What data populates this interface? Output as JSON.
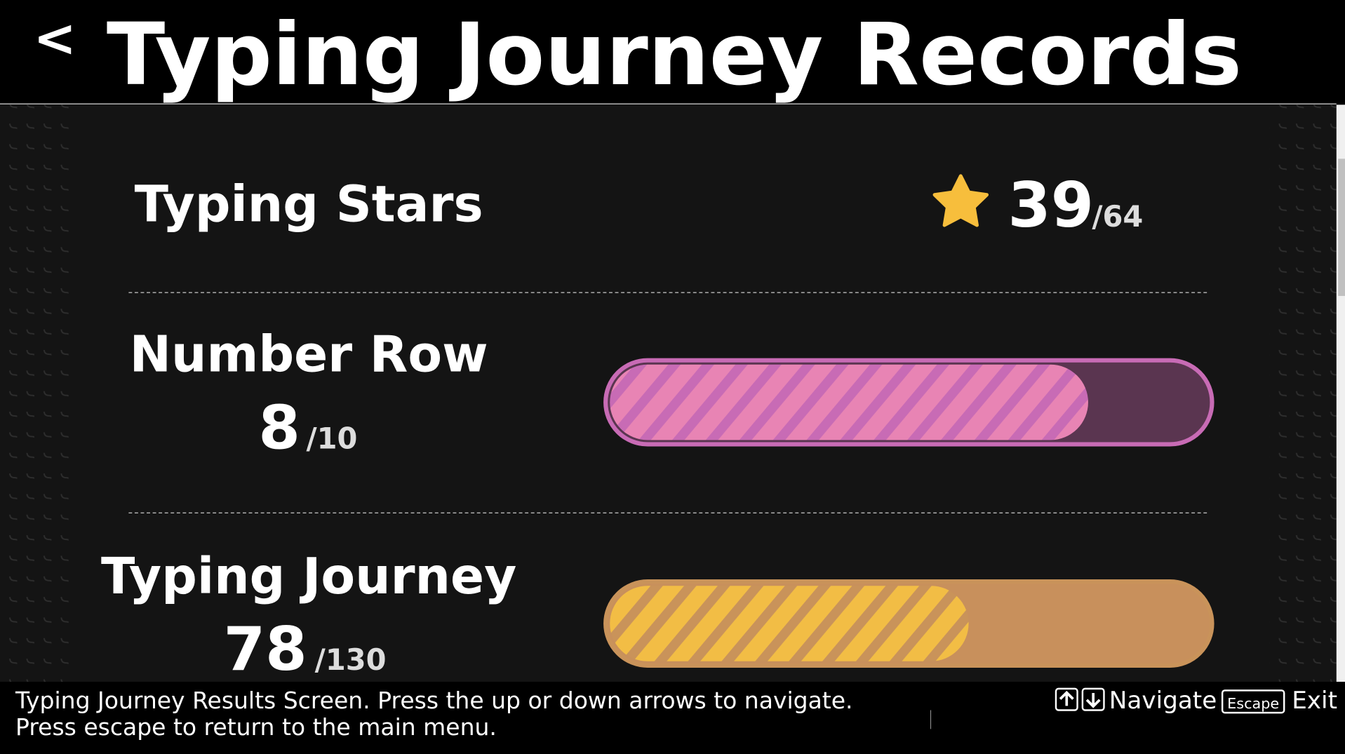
{
  "header": {
    "back_icon": "<",
    "title": "Typing Journey Records"
  },
  "records": [
    {
      "label": "Typing Stars",
      "value": 39,
      "max_label": "/64"
    },
    {
      "label": "Number Row",
      "value": 8,
      "max": 10,
      "max_label": "/10",
      "fill_color": "#e884b4",
      "stripe_color": "#c86bb5",
      "track_color": "#5a3550"
    },
    {
      "label": "Typing Journey",
      "value": 78,
      "max": 130,
      "max_label": "/130",
      "fill_color": "#f2bd45",
      "stripe_color": "#c9935a",
      "track_color": "#c8905c"
    }
  ],
  "footer": {
    "description": [
      "Typing Journey Results Screen. Press the up or down arrows to navigate.",
      "Press escape to return to the main menu."
    ],
    "hints": {
      "navigate": "Navigate",
      "escape_key": "Escape",
      "exit": "Exit"
    }
  }
}
